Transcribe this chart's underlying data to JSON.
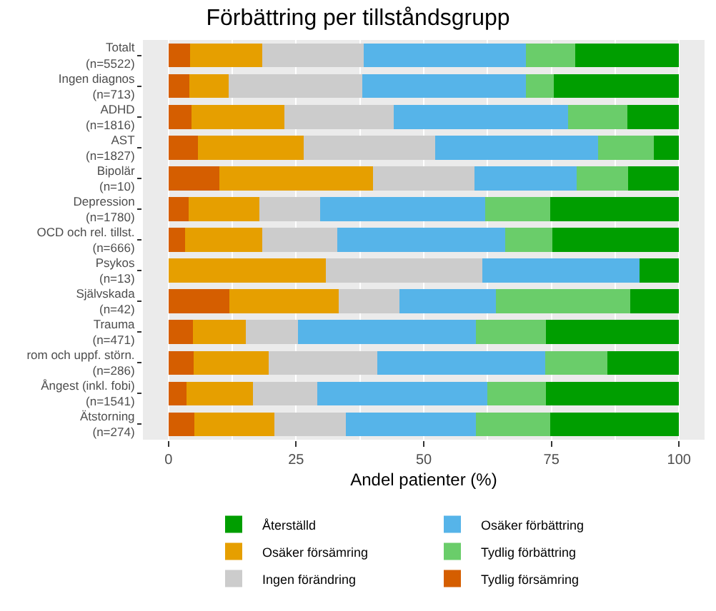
{
  "chart_data": {
    "type": "bar",
    "orientation": "horizontal",
    "stacked": true,
    "title": "Förbättring per tillståndsgrupp",
    "xlabel": "Andel patienter (%)",
    "categories": [
      "Totalt\n(n=5522)",
      "Ingen diagnos\n(n=713)",
      "ADHD\n(n=1816)",
      "AST\n(n=1827)",
      "Bipolär\n(n=10)",
      "Depression\n(n=1780)",
      "OCD och rel. tillst.\n(n=666)",
      "Psykos\n(n=13)",
      "Självskada\n(n=42)",
      "Trauma\n(n=471)",
      "rom och uppf. störn.\n(n=286)",
      "Ångest (inkl. fobi)\n(n=1541)",
      "Ätstorning\n(n=274)"
    ],
    "series": [
      {
        "name": "Tydlig försämring",
        "color": "#d55e00",
        "values": [
          4.2,
          4.1,
          4.5,
          5.8,
          10,
          4.0,
          3.2,
          0,
          11.9,
          4.8,
          5.0,
          3.6,
          5.1
        ]
      },
      {
        "name": "Osäker försämring",
        "color": "#e69f00",
        "values": [
          14.2,
          7.7,
          18.2,
          20.7,
          30,
          13.8,
          15.2,
          30.8,
          21.4,
          10.3,
          14.6,
          13.0,
          15.7
        ]
      },
      {
        "name": "Ingen förändring",
        "color": "#cccccc",
        "values": [
          19.8,
          26.2,
          21.4,
          25.7,
          20,
          11.9,
          14.6,
          30.7,
          11.9,
          10.3,
          21.3,
          12.6,
          13.9
        ]
      },
      {
        "name": "Osäker förbättring",
        "color": "#56b4e9",
        "values": [
          31.8,
          32.0,
          34.1,
          31.9,
          20,
          32.3,
          33.0,
          30.8,
          19.0,
          34.8,
          32.9,
          33.2,
          25.5
        ]
      },
      {
        "name": "Tydlig förbättring",
        "color": "#6acd6a",
        "values": [
          9.6,
          5.5,
          11.7,
          10.9,
          10,
          12.8,
          9.2,
          0,
          26.2,
          13.7,
          12.1,
          11.5,
          14.6
        ]
      },
      {
        "name": "Återställd",
        "color": "#009e00",
        "values": [
          20.4,
          24.5,
          10.1,
          5.0,
          10,
          25.2,
          24.8,
          7.7,
          9.5,
          26.1,
          14.1,
          26.1,
          25.2
        ]
      }
    ],
    "xlim": [
      -5,
      105
    ],
    "xticks": [
      0,
      25,
      50,
      75,
      100
    ],
    "grid": "x",
    "legend": "bottom"
  }
}
